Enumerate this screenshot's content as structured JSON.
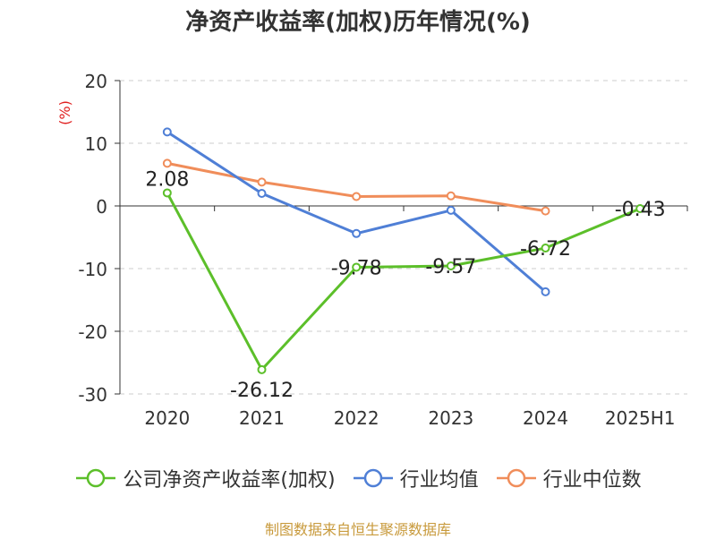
{
  "chart_data": {
    "type": "line",
    "title": "净资产收益率(加权)历年情况(%)",
    "ylabel": "(%)",
    "xlabel": "",
    "categories": [
      "2020",
      "2021",
      "2022",
      "2023",
      "2024",
      "2025H1"
    ],
    "ylim": [
      -30,
      20
    ],
    "yticks": [
      20,
      10,
      0,
      -10,
      -20,
      -30
    ],
    "ytick_labels": [
      "20",
      "10",
      "0",
      "-10",
      "-20",
      "-30"
    ],
    "grid": true,
    "legend_position": "bottom",
    "series": [
      {
        "name": "公司净资产收益率(加权)",
        "color": "#5cbf2a",
        "values": [
          2.08,
          -26.12,
          -9.78,
          -9.57,
          -6.72,
          -0.43
        ],
        "labels": [
          "2.08",
          "-26.12",
          "-9.78",
          "-9.57",
          "-6.72",
          "-0.43"
        ]
      },
      {
        "name": "行业均值",
        "color": "#4f7fd6",
        "values": [
          11.8,
          2.0,
          -4.4,
          -0.7,
          -13.7,
          null
        ]
      },
      {
        "name": "行业中位数",
        "color": "#f08d5a",
        "values": [
          6.8,
          3.8,
          1.5,
          1.6,
          -0.8,
          null
        ]
      }
    ]
  },
  "source": "制图数据来自恒生聚源数据库"
}
